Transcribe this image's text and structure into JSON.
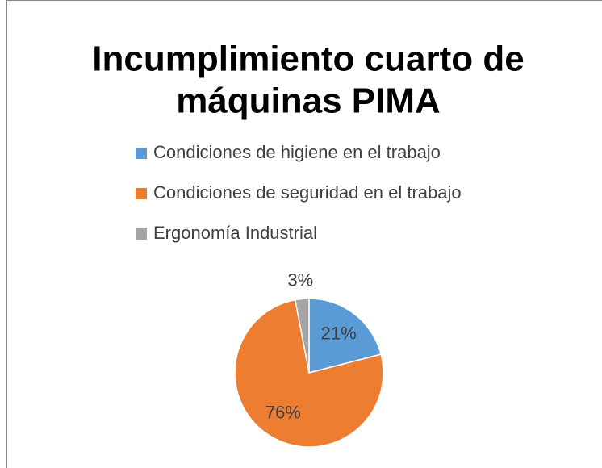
{
  "chart_data": {
    "type": "pie",
    "title": [
      "Incumplimiento cuarto de",
      "máquinas PIMA"
    ],
    "categories": [
      "Condiciones de higiene en el trabajo",
      "Condiciones de seguridad en el trabajo",
      "Ergonomía Industrial"
    ],
    "values": [
      21,
      76,
      3
    ],
    "value_labels": [
      "21%",
      "76%",
      "3%"
    ],
    "colors": [
      "#5b9bd5",
      "#ed7d31",
      "#a5a5a5"
    ],
    "legend": "top"
  }
}
